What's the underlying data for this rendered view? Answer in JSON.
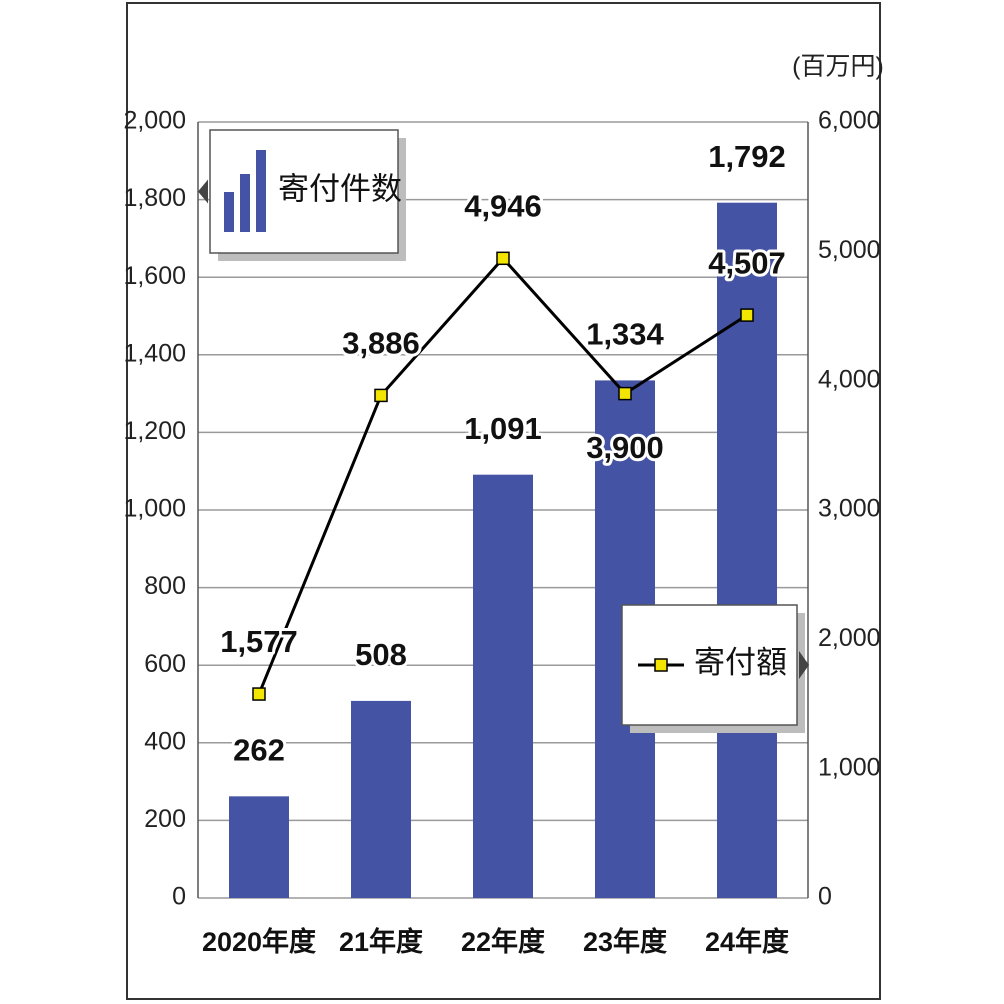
{
  "chart_data": {
    "type": "bar-line",
    "categories": [
      "2020年度",
      "21年度",
      "22年度",
      "23年度",
      "24年度"
    ],
    "series": [
      {
        "name": "寄付件数",
        "type": "bar",
        "color": "#4453a3",
        "values": [
          262,
          508,
          1091,
          1334,
          1792
        ],
        "value_labels": [
          "262",
          "508",
          "1,091",
          "1,334",
          "1,792"
        ]
      },
      {
        "name": "寄付額",
        "type": "line",
        "axis": "y2",
        "color": "#000000",
        "marker_color": "#f2e600",
        "values": [
          1577,
          3886,
          4946,
          3900,
          4507
        ],
        "value_labels": [
          "1,577",
          "3,886",
          "4,946",
          "3,900",
          "4,507"
        ]
      }
    ],
    "ylim": [
      0,
      2000
    ],
    "yticks": [
      0,
      200,
      400,
      600,
      800,
      {
        "value": 1000,
        "label": "1,000"
      },
      {
        "value": 1200,
        "label": "1,200"
      },
      {
        "value": 1400,
        "label": "1,400"
      },
      {
        "value": 1600,
        "label": "1,600"
      },
      {
        "value": 1800,
        "label": "1,800"
      },
      {
        "value": 2000,
        "label": "2,000"
      }
    ],
    "y2lim": [
      0,
      6000
    ],
    "y2ticks": [
      0,
      {
        "value": 1000,
        "label": "1,000"
      },
      {
        "value": 2000,
        "label": "2,000"
      },
      {
        "value": 3000,
        "label": "3,000"
      },
      {
        "value": 4000,
        "label": "4,000"
      },
      {
        "value": 5000,
        "label": "5,000"
      },
      {
        "value": 6000,
        "label": "6,000"
      }
    ],
    "y2label": "(百万円)",
    "grid": true
  }
}
